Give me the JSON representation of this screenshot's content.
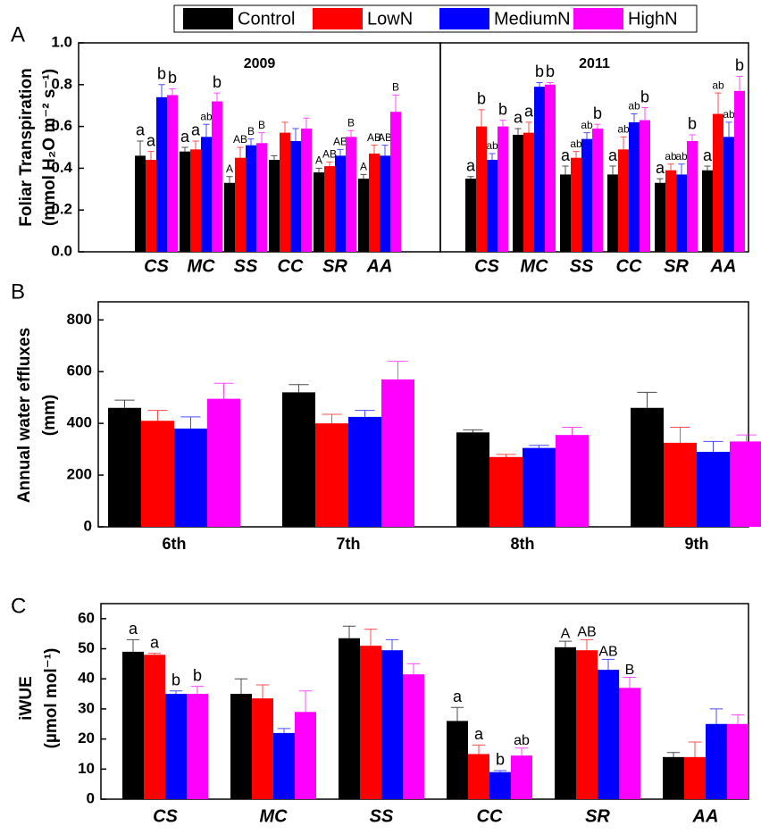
{
  "legend": [
    {
      "name": "Control",
      "color": "#000000"
    },
    {
      "name": "LowN",
      "color": "#ff0000"
    },
    {
      "name": "MediumN",
      "color": "#0000ff"
    },
    {
      "name": "HighN",
      "color": "#ff00ff"
    }
  ],
  "chart_data": [
    {
      "type": "bar",
      "panel": "A",
      "title": "2009",
      "ylabel": [
        "Foliar Transpiration",
        "(mmol H₂O m⁻² s⁻¹)"
      ],
      "categories": [
        "CS",
        "MC",
        "SS",
        "CC",
        "SR",
        "AA"
      ],
      "ylim": [
        0,
        1
      ],
      "yticks": [
        {
          "value": 0,
          "label": "0.0"
        },
        {
          "value": 0.2,
          "label": "0.2"
        },
        {
          "value": 0.4,
          "label": "0.4"
        },
        {
          "value": 0.6,
          "label": "0.6"
        },
        {
          "value": 0.8,
          "label": "0.8"
        },
        {
          "value": 1,
          "label": "1.0"
        }
      ],
      "series": [
        {
          "values": [
            0.46,
            0.48,
            0.33,
            0.44,
            0.38,
            0.35
          ],
          "errors": [
            0.07,
            0.02,
            0.03,
            0.02,
            0.02,
            0.02
          ],
          "letters": [
            "a",
            "a",
            "A",
            null,
            "A",
            "A"
          ]
        },
        {
          "values": [
            0.44,
            0.49,
            0.45,
            0.57,
            0.41,
            0.47
          ],
          "errors": [
            0.04,
            0.04,
            0.05,
            0.05,
            0.02,
            0.04
          ],
          "letters": [
            "a",
            "a",
            "AB",
            null,
            "AB",
            "AB"
          ]
        },
        {
          "values": [
            0.74,
            0.55,
            0.51,
            0.53,
            0.46,
            0.46
          ],
          "errors": [
            0.06,
            0.06,
            0.03,
            0.06,
            0.03,
            0.05
          ],
          "letters": [
            "b",
            "ab",
            "B",
            null,
            "AB",
            "AB"
          ]
        },
        {
          "values": [
            0.75,
            0.72,
            0.52,
            0.59,
            0.55,
            0.67
          ],
          "errors": [
            0.03,
            0.04,
            0.05,
            0.05,
            0.03,
            0.08
          ],
          "letters": [
            "b",
            "b",
            "B",
            null,
            "B",
            "B"
          ]
        }
      ]
    },
    {
      "type": "bar",
      "title": "2011",
      "categories": [
        "CS",
        "MC",
        "SS",
        "CC",
        "SR",
        "AA"
      ],
      "ylim": [
        0,
        1
      ],
      "series": [
        {
          "values": [
            0.35,
            0.56,
            0.37,
            0.37,
            0.33,
            0.39
          ],
          "errors": [
            0.01,
            0.03,
            0.04,
            0.04,
            0.02,
            0.02
          ],
          "letters": [
            "a",
            "a",
            "a",
            "a",
            "a",
            "a"
          ]
        },
        {
          "values": [
            0.6,
            0.57,
            0.45,
            0.49,
            0.39,
            0.66
          ],
          "errors": [
            0.08,
            0.05,
            0.03,
            0.06,
            0.03,
            0.1
          ],
          "letters": [
            "b",
            "a",
            "ab",
            "ab",
            "ab",
            "ab"
          ]
        },
        {
          "values": [
            0.44,
            0.79,
            0.54,
            0.62,
            0.37,
            0.55
          ],
          "errors": [
            0.03,
            0.02,
            0.03,
            0.04,
            0.05,
            0.07
          ],
          "letters": [
            "ab",
            "b",
            "ab",
            "ab",
            "ab",
            "ab"
          ]
        },
        {
          "values": [
            0.6,
            0.8,
            0.59,
            0.63,
            0.53,
            0.77
          ],
          "errors": [
            0.03,
            0.01,
            0.02,
            0.06,
            0.03,
            0.07
          ],
          "letters": [
            "b",
            "b",
            "b",
            "b",
            "b",
            "b"
          ]
        }
      ]
    },
    {
      "type": "bar",
      "panel": "B",
      "ylabel": [
        "Annual water effluxes",
        "(mm)"
      ],
      "categories": [
        "6th",
        "7th",
        "8th",
        "9th"
      ],
      "ylim": [
        0,
        870
      ],
      "yticks": [
        0,
        200,
        400,
        600,
        800
      ],
      "series": [
        {
          "values": [
            460,
            520,
            365,
            460
          ],
          "errors": [
            30,
            30,
            10,
            60
          ]
        },
        {
          "values": [
            410,
            400,
            270,
            325
          ],
          "errors": [
            40,
            35,
            10,
            60
          ]
        },
        {
          "values": [
            380,
            425,
            305,
            290
          ],
          "errors": [
            45,
            25,
            10,
            40
          ]
        },
        {
          "values": [
            495,
            570,
            355,
            330
          ],
          "errors": [
            60,
            70,
            30,
            25
          ]
        }
      ]
    },
    {
      "type": "bar",
      "panel": "C",
      "ylabel": [
        "iWUE",
        "(µmol mol⁻¹)"
      ],
      "categories": [
        "CS",
        "MC",
        "SS",
        "CC",
        "SR",
        "AA"
      ],
      "ylim": [
        0,
        65
      ],
      "yticks": [
        0,
        10,
        20,
        30,
        40,
        50,
        60
      ],
      "series": [
        {
          "values": [
            49,
            35,
            53.5,
            26,
            50.5,
            14
          ],
          "errors": [
            4,
            5,
            4,
            4.5,
            2,
            1.5
          ],
          "letters": [
            "a",
            null,
            null,
            "a",
            "A",
            null
          ]
        },
        {
          "values": [
            48,
            33.5,
            51,
            15,
            49.5,
            14
          ],
          "errors": [
            0.5,
            4.5,
            5.5,
            3,
            3.5,
            5
          ],
          "letters": [
            "a",
            null,
            null,
            "a",
            "AB",
            null
          ]
        },
        {
          "values": [
            35,
            22,
            49.5,
            9,
            43,
            25
          ],
          "errors": [
            1,
            1.5,
            3.5,
            0.5,
            3.5,
            5
          ],
          "letters": [
            "b",
            null,
            null,
            "b",
            "AB",
            null
          ]
        },
        {
          "values": [
            35,
            29,
            41.5,
            14.5,
            37,
            25
          ],
          "errors": [
            2.5,
            7,
            3.5,
            2.5,
            3.5,
            3
          ],
          "letters": [
            "b",
            null,
            null,
            "ab",
            "B",
            null
          ]
        }
      ]
    }
  ]
}
